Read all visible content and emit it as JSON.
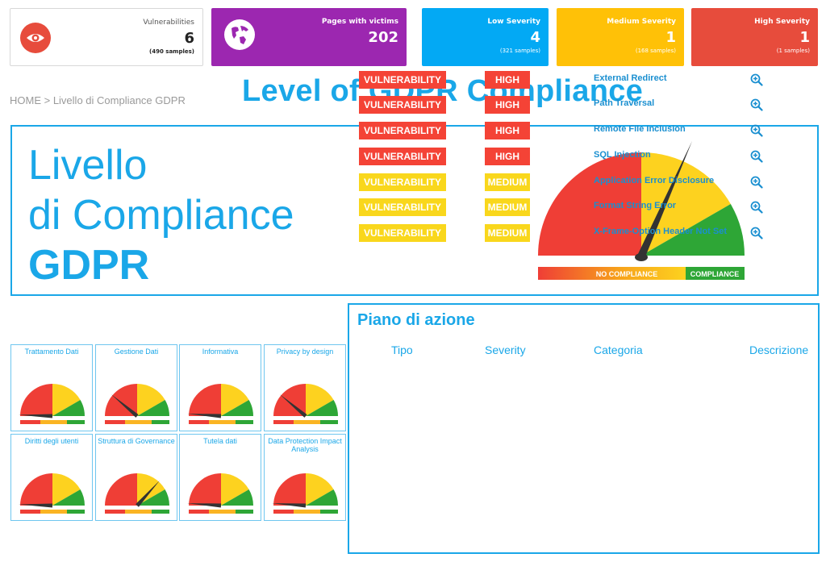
{
  "stats": [
    {
      "label": "Vulnerabilities",
      "value": "6",
      "samples": "(490 samples)",
      "icon": "eye-icon",
      "color": "#ffffff",
      "icon_color": "#e74c3c"
    },
    {
      "label": "Pages with victims",
      "value": "202",
      "samples": "",
      "icon": "globe-icon",
      "color": "#9c27b0",
      "icon_color": "#ffffff"
    },
    {
      "label": "Low Severity",
      "value": "4",
      "samples": "(321 samples)",
      "color": "#03a9f4"
    },
    {
      "label": "Medium Severity",
      "value": "1",
      "samples": "(168 samples)",
      "color": "#ffc107"
    },
    {
      "label": "High Severity",
      "value": "1",
      "samples": "(1 samples)",
      "color": "#e74c3c"
    }
  ],
  "breadcrumb": "HOME > Livello di Compliance GDPR",
  "page_title": "Level of GDPR Compliance",
  "hero": {
    "line1": "Livello",
    "line2": "di Compliance",
    "line3": "GDPR",
    "scale_left": "NO COMPLIANCE",
    "scale_right": "COMPLIANCE"
  },
  "mini_gauges": [
    {
      "title": "Trattamento Dati",
      "needle_deg": -88
    },
    {
      "title": "Gestione Dati",
      "needle_deg": -50
    },
    {
      "title": "Informativa",
      "needle_deg": -86
    },
    {
      "title": "Privacy by design",
      "needle_deg": -50
    },
    {
      "title": "Diritti degli utenti",
      "needle_deg": -88
    },
    {
      "title": "Struttura di Governance",
      "needle_deg": 42
    },
    {
      "title": "Tutela dati",
      "needle_deg": -86
    },
    {
      "title": "Data Protection Impact Analysis",
      "needle_deg": -86
    }
  ],
  "plan": {
    "title": "Piano di azione",
    "headers": {
      "tipo": "Tipo",
      "severity": "Severity",
      "categoria": "Categoria",
      "descrizione": "Descrizione"
    },
    "rows": [
      {
        "tipo": "VULNERABILITY",
        "severity": "HIGH",
        "categoria": "External Redirect",
        "color": "#f44336"
      },
      {
        "tipo": "VULNERABILITY",
        "severity": "HIGH",
        "categoria": "Path Traversal",
        "color": "#f44336"
      },
      {
        "tipo": "VULNERABILITY",
        "severity": "HIGH",
        "categoria": "Remote File Inclusion",
        "color": "#f44336"
      },
      {
        "tipo": "VULNERABILITY",
        "severity": "HIGH",
        "categoria": "SQL Injection",
        "color": "#f44336"
      },
      {
        "tipo": "VULNERABILITY",
        "severity": "MEDIUM",
        "categoria": "Application Error Disclosure",
        "color": "#f9d71c"
      },
      {
        "tipo": "VULNERABILITY",
        "severity": "MEDIUM",
        "categoria": "Format String Error",
        "color": "#f9d71c"
      },
      {
        "tipo": "VULNERABILITY",
        "severity": "MEDIUM",
        "categoria": "X-Frame-Option Header Not Set",
        "color": "#f9d71c"
      }
    ]
  },
  "colors": {
    "accent": "#1aa7e8",
    "gauge_red": "#ef3e36",
    "gauge_yellow": "#fdd21f",
    "gauge_green": "#2ea636",
    "needle": "#333333"
  }
}
